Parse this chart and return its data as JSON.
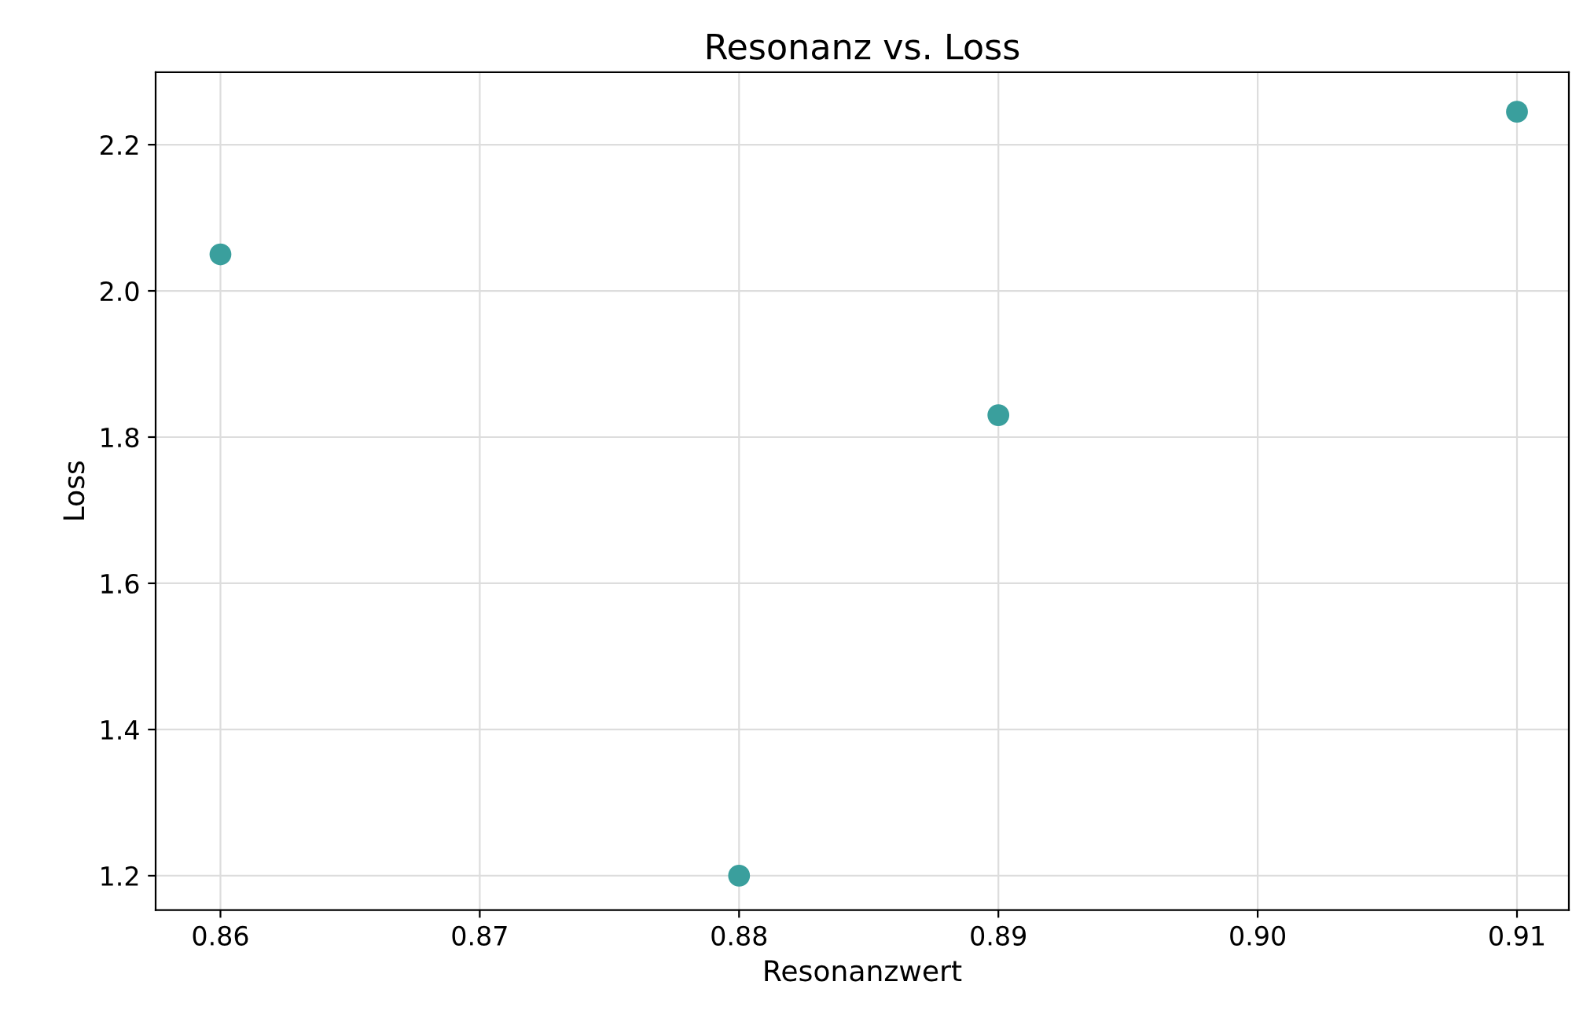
{
  "chart_data": {
    "type": "scatter",
    "title": "Resonanz vs. Loss",
    "xlabel": "Resonanzwert",
    "ylabel": "Loss",
    "x": [
      0.86,
      0.88,
      0.89,
      0.91
    ],
    "series": [
      {
        "color": "#3a9f9d",
        "values": [
          2.05,
          1.2,
          1.83,
          2.245
        ]
      }
    ],
    "xlim": [
      0.8575,
      0.912
    ],
    "xticks": [
      {
        "value": 0.86,
        "label": "0.86"
      },
      {
        "value": 0.87,
        "label": "0.87"
      },
      {
        "value": 0.88,
        "label": "0.88"
      },
      {
        "value": 0.89,
        "label": "0.89"
      },
      {
        "value": 0.9,
        "label": "0.90"
      },
      {
        "value": 0.91,
        "label": "0.91"
      }
    ],
    "ylim": [
      1.153,
      2.299
    ],
    "yticks": [
      1.2,
      1.4,
      1.6,
      1.8,
      {
        "value": 2.0,
        "label": "2.0"
      },
      2.2
    ],
    "grid": true,
    "marker": "circle"
  }
}
